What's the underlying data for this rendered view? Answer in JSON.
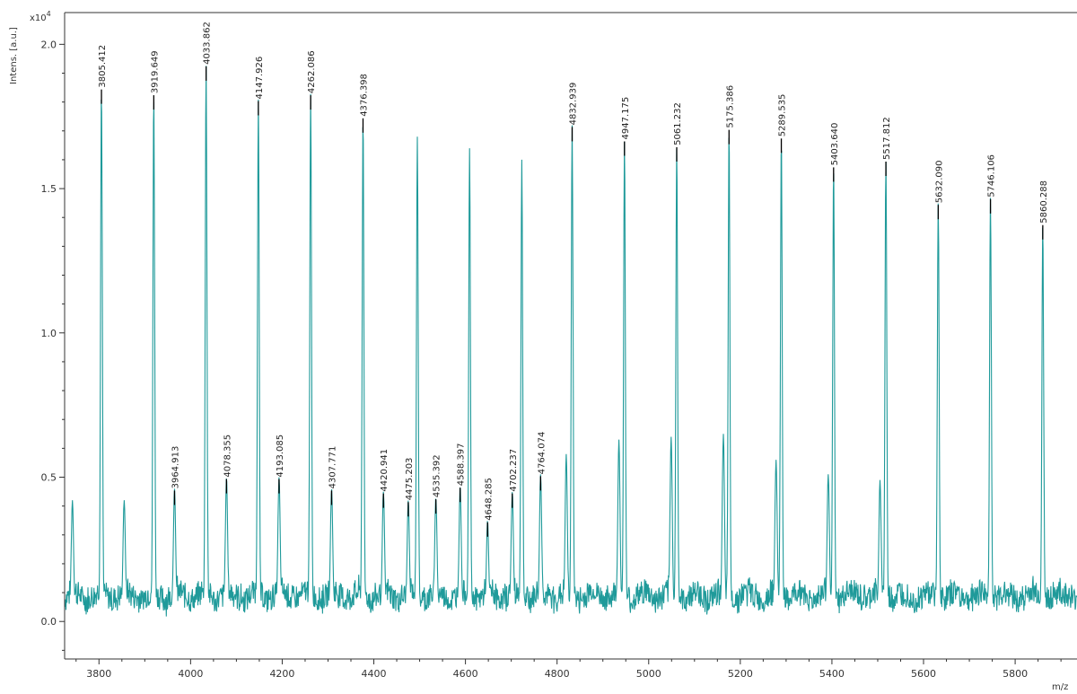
{
  "chart_data": {
    "type": "line",
    "ylabel": "Intens. [a.u.]",
    "xlabel": "m/z",
    "y_multiplier": "x10",
    "y_exponent": "4",
    "xlim": [
      3725,
      5935
    ],
    "ylim": [
      -0.13,
      2.11
    ],
    "xticks": [
      3800,
      4000,
      4200,
      4400,
      4600,
      4800,
      5000,
      5200,
      5400,
      5600,
      5800
    ],
    "yticks": [
      0.0,
      0.5,
      1.0,
      1.5,
      2.0
    ],
    "ytick_labels": [
      "0.0",
      "0.5",
      "1.0",
      "1.5",
      "2.0"
    ],
    "grid": false,
    "line_color": "#1f9a9a",
    "marker_color": "#000000",
    "peaks": [
      {
        "mz": 3805.412,
        "label": "3805.412",
        "intensity": 1.8
      },
      {
        "mz": 3919.649,
        "label": "3919.649",
        "intensity": 1.78
      },
      {
        "mz": 3964.913,
        "label": "3964.913",
        "intensity": 0.41
      },
      {
        "mz": 4033.862,
        "label": "4033.862",
        "intensity": 1.88
      },
      {
        "mz": 4078.355,
        "label": "4078.355",
        "intensity": 0.45
      },
      {
        "mz": 4147.926,
        "label": "4147.926",
        "intensity": 1.76
      },
      {
        "mz": 4193.085,
        "label": "4193.085",
        "intensity": 0.45
      },
      {
        "mz": 4262.086,
        "label": "4262.086",
        "intensity": 1.78
      },
      {
        "mz": 4307.771,
        "label": "4307.771",
        "intensity": 0.41
      },
      {
        "mz": 4376.398,
        "label": "4376.398",
        "intensity": 1.7
      },
      {
        "mz": 4420.941,
        "label": "4420.941",
        "intensity": 0.4
      },
      {
        "mz": 4475.203,
        "label": "4475.203",
        "intensity": 0.37
      },
      {
        "mz": 4535.392,
        "label": "4535.392",
        "intensity": 0.38
      },
      {
        "mz": 4588.397,
        "label": "4588.397",
        "intensity": 0.42
      },
      {
        "mz": 4648.285,
        "label": "4648.285",
        "intensity": 0.3
      },
      {
        "mz": 4702.237,
        "label": "4702.237",
        "intensity": 0.4
      },
      {
        "mz": 4764.074,
        "label": "4764.074",
        "intensity": 0.46
      },
      {
        "mz": 4832.939,
        "label": "4832.939",
        "intensity": 1.67
      },
      {
        "mz": 4947.175,
        "label": "4947.175",
        "intensity": 1.62
      },
      {
        "mz": 5061.232,
        "label": "5061.232",
        "intensity": 1.6
      },
      {
        "mz": 5175.386,
        "label": "5175.386",
        "intensity": 1.66
      },
      {
        "mz": 5289.535,
        "label": "5289.535",
        "intensity": 1.63
      },
      {
        "mz": 5403.64,
        "label": "5403.640",
        "intensity": 1.53
      },
      {
        "mz": 5517.812,
        "label": "5517.812",
        "intensity": 1.55
      },
      {
        "mz": 5632.09,
        "label": "5632.090",
        "intensity": 1.4
      },
      {
        "mz": 5746.106,
        "label": "5746.106",
        "intensity": 1.42
      },
      {
        "mz": 5860.288,
        "label": "5860.288",
        "intensity": 1.33
      }
    ],
    "unlabeled_peaks": [
      {
        "mz": 4495,
        "intensity": 1.63
      },
      {
        "mz": 4609,
        "intensity": 1.59
      },
      {
        "mz": 4723,
        "intensity": 1.55
      },
      {
        "mz": 4820,
        "intensity": 0.53
      },
      {
        "mz": 4935,
        "intensity": 0.58
      },
      {
        "mz": 5049,
        "intensity": 0.59
      },
      {
        "mz": 5163,
        "intensity": 0.6
      },
      {
        "mz": 5278,
        "intensity": 0.51
      },
      {
        "mz": 5392,
        "intensity": 0.46
      },
      {
        "mz": 5505,
        "intensity": 0.44
      },
      {
        "mz": 3742,
        "intensity": 0.37
      },
      {
        "mz": 3855,
        "intensity": 0.37
      }
    ]
  }
}
